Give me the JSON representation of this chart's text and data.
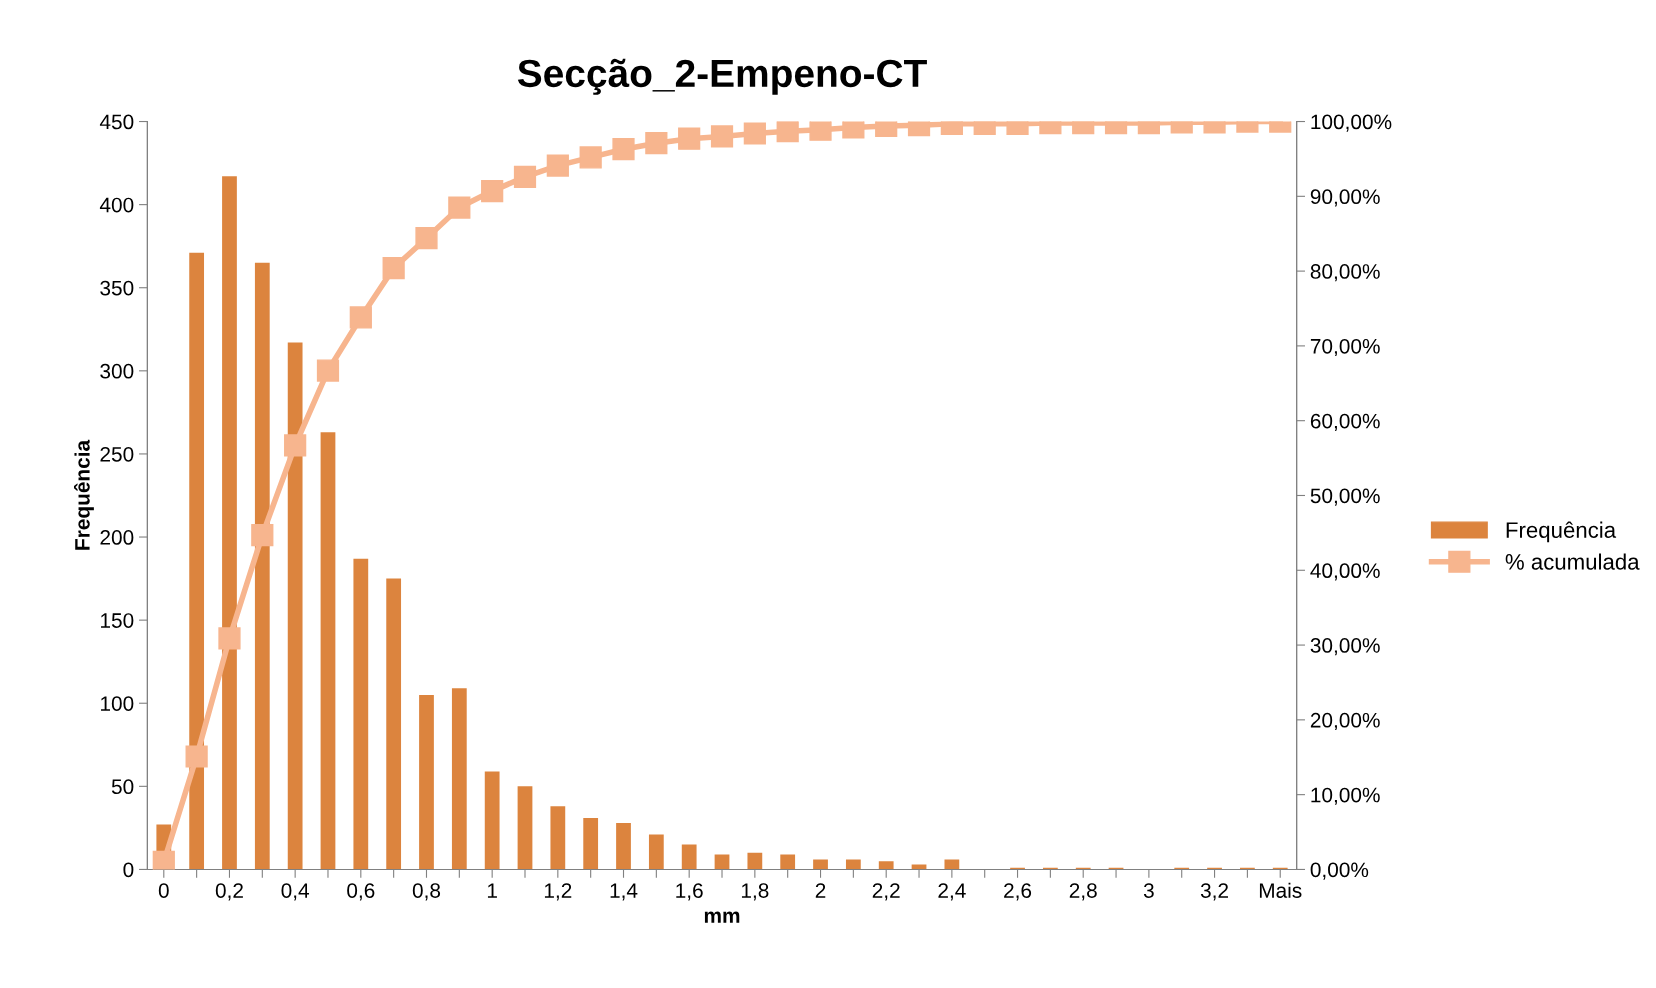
{
  "chart_data": {
    "type": "bar",
    "title": "Secção_2-Empeno-CT",
    "xlabel": "mm",
    "ylabel": "Frequência",
    "categories": [
      "0",
      null,
      "0,2",
      null,
      "0,4",
      null,
      "0,6",
      null,
      "0,8",
      null,
      "1",
      null,
      "1,2",
      null,
      "1,4",
      null,
      "1,6",
      null,
      "1,8",
      null,
      "2",
      null,
      "2,2",
      null,
      "2,4",
      null,
      "2,6",
      null,
      "2,8",
      null,
      "3",
      null,
      "3,2",
      null,
      "Mais"
    ],
    "series": [
      {
        "name": "Frequência",
        "color": "#dc843e",
        "values": [
          27,
          371,
          417,
          365,
          317,
          263,
          187,
          175,
          105,
          109,
          59,
          50,
          38,
          31,
          28,
          21,
          15,
          9,
          10,
          9,
          6,
          6,
          5,
          3,
          6,
          0,
          1,
          1,
          1,
          1,
          0,
          1,
          1,
          1,
          1
        ]
      },
      {
        "name": "% acumulada",
        "type": "line",
        "axis": "y2",
        "color": "#f7b58e",
        "marker": "square",
        "values": [
          1.0,
          15.1,
          30.9,
          44.7,
          56.7,
          66.7,
          73.8,
          80.4,
          84.4,
          88.5,
          90.7,
          92.6,
          94.1,
          95.2,
          96.3,
          97.1,
          97.7,
          98.0,
          98.4,
          98.7,
          98.9,
          99.2,
          99.4,
          99.5,
          99.7,
          99.7,
          99.7,
          99.8,
          99.8,
          99.8,
          99.8,
          99.9,
          99.9,
          100,
          100
        ]
      }
    ],
    "ylim": [
      0,
      450
    ],
    "yticks": [
      0,
      50,
      100,
      150,
      200,
      250,
      300,
      350,
      400,
      450
    ],
    "y2lim": [
      0,
      100
    ],
    "y2ticks": [
      {
        "value": 0,
        "label": "0,00%"
      },
      {
        "value": 10,
        "label": "10,00%"
      },
      {
        "value": 20,
        "label": "20,00%"
      },
      {
        "value": 30,
        "label": "30,00%"
      },
      {
        "value": 40,
        "label": "40,00%"
      },
      {
        "value": 50,
        "label": "50,00%"
      },
      {
        "value": 60,
        "label": "60,00%"
      },
      {
        "value": 70,
        "label": "70,00%"
      },
      {
        "value": 80,
        "label": "80,00%"
      },
      {
        "value": 90,
        "label": "90,00%"
      },
      {
        "value": 100,
        "label": "100,00%"
      }
    ],
    "grid": false,
    "legend": "right"
  }
}
